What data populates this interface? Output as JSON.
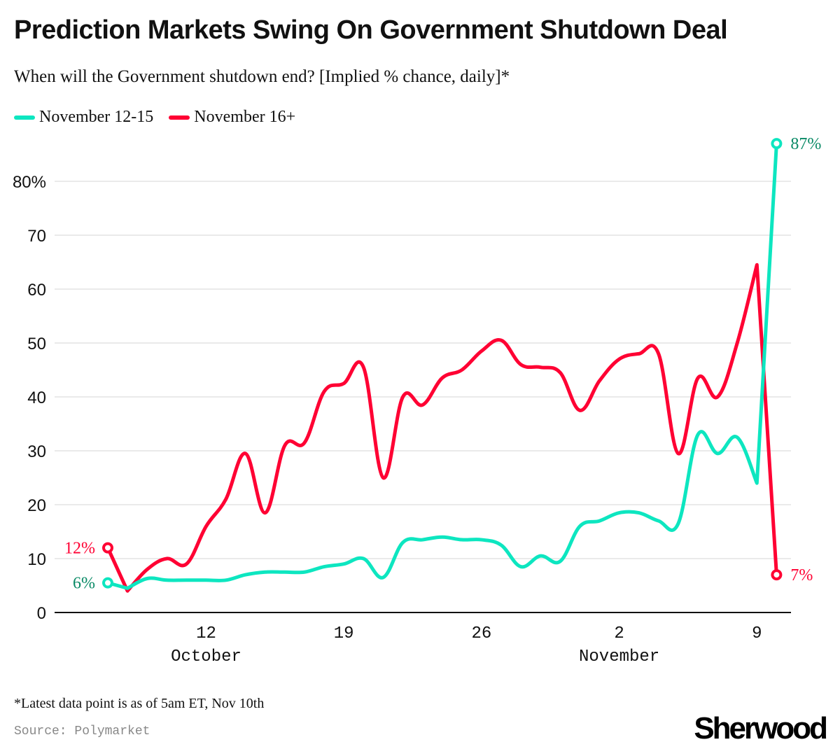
{
  "header": {
    "title": "Prediction Markets Swing On Government Shutdown Deal",
    "subtitle": "When will the Government shutdown end? [Implied % chance, daily]*"
  },
  "footer": {
    "footnote": "*Latest data point is as of 5am ET, Nov 10th",
    "source": "Source: Polymarket",
    "brand": "Sherwood"
  },
  "colors": {
    "teal": "#0de6c0",
    "teal_label": "#0a8a66",
    "red": "#ff0033",
    "grid": "#e3e3e3",
    "axis": "#111111"
  },
  "chart_data": {
    "type": "line",
    "title": "Prediction Markets Swing On Government Shutdown Deal",
    "subtitle": "When will the Government shutdown end? [Implied % chance, daily]*",
    "xlabel": "",
    "ylabel": "Implied % chance",
    "ylim": [
      0,
      80
    ],
    "yticks": [
      0,
      10,
      20,
      30,
      40,
      50,
      60,
      70,
      80
    ],
    "ytick_labels": [
      "0",
      "10",
      "20",
      "30",
      "40",
      "50",
      "60",
      "70",
      "80%"
    ],
    "grid": true,
    "legend_position": "top-left",
    "x_start": "Oct 7",
    "x": [
      "Oct 7",
      "Oct 8",
      "Oct 9",
      "Oct 10",
      "Oct 11",
      "Oct 12",
      "Oct 13",
      "Oct 14",
      "Oct 15",
      "Oct 16",
      "Oct 17",
      "Oct 18",
      "Oct 19",
      "Oct 20",
      "Oct 21",
      "Oct 22",
      "Oct 23",
      "Oct 24",
      "Oct 25",
      "Oct 26",
      "Oct 27",
      "Oct 28",
      "Oct 29",
      "Oct 30",
      "Oct 31",
      "Nov 1",
      "Nov 2",
      "Nov 3",
      "Nov 4",
      "Nov 5",
      "Nov 6",
      "Nov 7",
      "Nov 8",
      "Nov 9",
      "Nov 10"
    ],
    "xticks": [
      {
        "day_index": 5,
        "label": "12",
        "month": "October"
      },
      {
        "day_index": 12,
        "label": "19",
        "month": ""
      },
      {
        "day_index": 19,
        "label": "26",
        "month": ""
      },
      {
        "day_index": 26,
        "label": "2",
        "month": "November"
      },
      {
        "day_index": 33,
        "label": "9",
        "month": ""
      }
    ],
    "series": [
      {
        "name": "November 12-15",
        "color": "#0de6c0",
        "label_color": "#0a8a66",
        "start_label": "6%",
        "end_label": "87%",
        "values": [
          5.5,
          4.5,
          6.3,
          6,
          6,
          6,
          6,
          7,
          7.5,
          7.5,
          7.5,
          8.5,
          9,
          10,
          6.5,
          13,
          13.5,
          14,
          13.5,
          13.5,
          12.5,
          8.5,
          10.5,
          9.5,
          16,
          17,
          18.5,
          18.5,
          17,
          16.5,
          33,
          29.5,
          32.5,
          24,
          87
        ]
      },
      {
        "name": "November 16+",
        "color": "#ff0033",
        "label_color": "#ff0033",
        "start_label": "12%",
        "end_label": "7%",
        "values": [
          12,
          4,
          8,
          10,
          9,
          16,
          21,
          29.5,
          18.5,
          31,
          31.5,
          41,
          42.5,
          45.5,
          25,
          40,
          38.5,
          43.5,
          45,
          48.5,
          50.5,
          46,
          45.5,
          44.5,
          37.5,
          43,
          47,
          48,
          48,
          29.5,
          43.5,
          40,
          50,
          64.5,
          7
        ]
      }
    ]
  }
}
